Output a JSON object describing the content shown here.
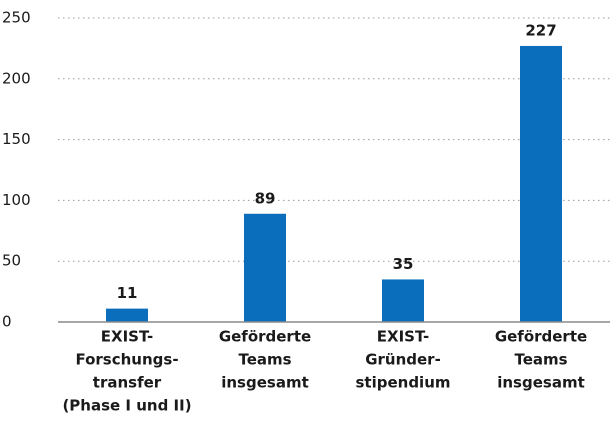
{
  "chart_data": {
    "type": "bar",
    "categories": [
      [
        "EXIST-",
        "Forschungs-",
        "transfer",
        "(Phase I und II)"
      ],
      [
        "Geförderte",
        "Teams",
        "insgesamt"
      ],
      [
        "EXIST-",
        "Gründer-",
        "stipendium"
      ],
      [
        "Geförderte",
        "Teams",
        "insgesamt"
      ]
    ],
    "values": [
      11,
      89,
      35,
      227
    ],
    "color": "#0a6ebd",
    "ylim": [
      0,
      250
    ],
    "yticks": [
      0,
      50,
      100,
      150,
      200,
      250
    ],
    "grid": true
  }
}
